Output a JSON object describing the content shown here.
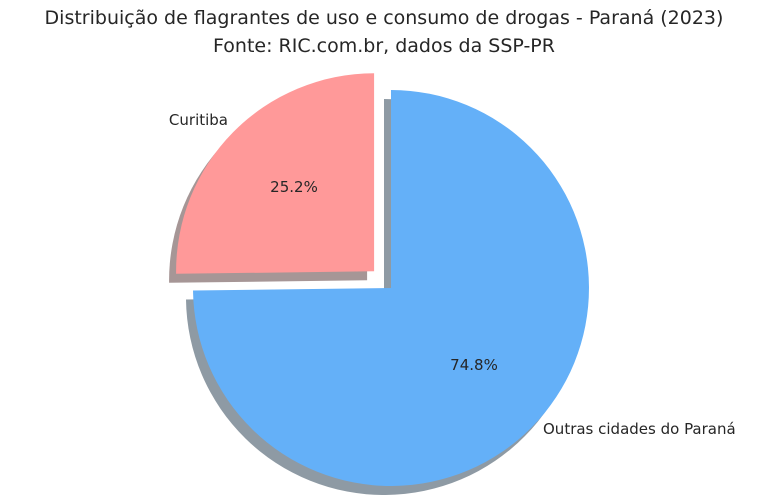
{
  "title": {
    "line1": "Distribuição de flagrantes de uso e consumo de drogas - Paraná (2023)",
    "line2": "Fonte: RIC.com.br, dados da SSP-PR"
  },
  "chart_data": {
    "type": "pie",
    "title": "Distribuição de flagrantes de uso e consumo de drogas - Paraná (2023)",
    "subtitle": "Fonte: RIC.com.br, dados da SSP-PR",
    "slices": [
      {
        "label": "Curitiba",
        "value": 25.2,
        "pct_label": "25.2%",
        "color": "#ff9999",
        "explode": 0.12
      },
      {
        "label": "Outras cidades do Paraná",
        "value": 74.8,
        "pct_label": "74.8%",
        "color": "#64b0f8",
        "explode": 0
      }
    ],
    "startangle": 90,
    "counterclock": true,
    "shadow": true,
    "legend": false,
    "background": "#ffffff",
    "text_color": "#262626"
  }
}
